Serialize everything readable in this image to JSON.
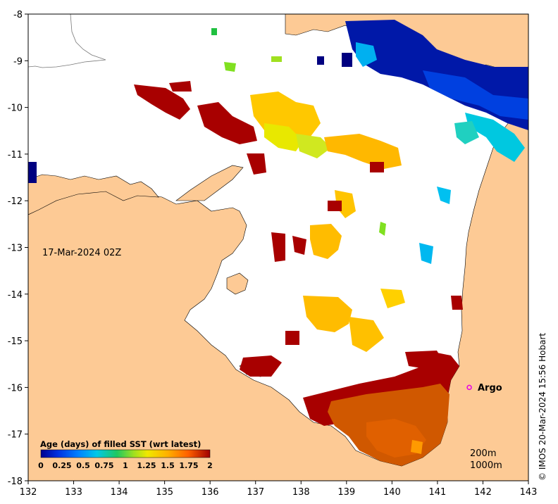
{
  "chart_data": {
    "type": "heatmap",
    "title": "Age (days) of filled SST (wrt latest)",
    "x_ticks": [
      "132",
      "133",
      "134",
      "135",
      "136",
      "137",
      "138",
      "139",
      "140",
      "141",
      "142",
      "143"
    ],
    "y_ticks": [
      "-8",
      "-9",
      "-10",
      "-11",
      "-12",
      "-13",
      "-14",
      "-15",
      "-16",
      "-17",
      "-18"
    ],
    "xlim": [
      132,
      143
    ],
    "ylim": [
      -18,
      -8
    ],
    "colorbar_ticks": [
      "0",
      "0.25",
      "0.5",
      "0.75",
      "1",
      "1.25",
      "1.5",
      "1.75",
      "2"
    ],
    "colorbar_range": [
      0,
      2
    ],
    "colorbar_colors": [
      "#000090",
      "#0020d0",
      "#0060ff",
      "#00b0f0",
      "#20e0c0",
      "#20c040",
      "#a0e020",
      "#f0e800",
      "#ffc000",
      "#ff8c00",
      "#e04000",
      "#a00000"
    ]
  },
  "map": {
    "date_label": "17-Mar-2024 02Z",
    "argo_label": "Argo",
    "argo_lon": 141.7,
    "argo_lat": -16.0,
    "contour_200": "200m",
    "contour_1000": "1000m",
    "land_color": "#fdca95",
    "argo_color": "#e600e6"
  },
  "credit": "© IMOS 20-Mar-2024 15:56 Hobart"
}
